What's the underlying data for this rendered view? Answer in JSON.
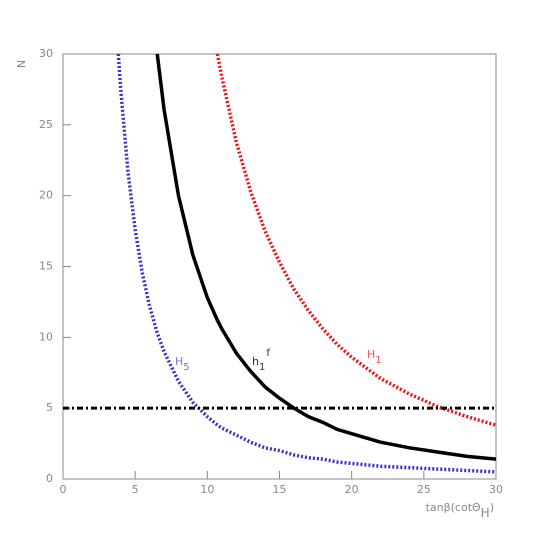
{
  "chart_data": {
    "type": "line",
    "xlabel": {
      "text": "tanβ(cotΘ",
      "sub": "H",
      "end": ")"
    },
    "ylabel": "N",
    "xlim": [
      0,
      30
    ],
    "ylim": [
      0,
      30
    ],
    "xticks": [
      0,
      5,
      10,
      15,
      20,
      25,
      30
    ],
    "yticks": [
      0,
      5,
      10,
      15,
      20,
      25,
      30
    ],
    "x": [
      3.83,
      4,
      4.5,
      5,
      5.5,
      6,
      6.53,
      7,
      8,
      9,
      10,
      10.7,
      11,
      12,
      13,
      14,
      15,
      16,
      17,
      18,
      19,
      20,
      22,
      24,
      26,
      28,
      30
    ],
    "series": [
      {
        "name": "H",
        "sub": "5",
        "color": "#3333cc",
        "style": "dotted",
        "values": [
          30.0,
          27.5,
          21.7,
          17.6,
          14.5,
          12.2,
          10.3,
          9.0,
          6.9,
          5.4,
          4.4,
          3.8,
          3.6,
          3.1,
          2.6,
          2.2,
          2.0,
          1.7,
          1.5,
          1.4,
          1.2,
          1.1,
          0.9,
          0.8,
          0.7,
          0.6,
          0.5
        ]
      },
      {
        "name": "h",
        "sub": "1",
        "sup": "f",
        "color": "#000000",
        "style": "solid",
        "values": [
          null,
          null,
          null,
          null,
          null,
          null,
          30.0,
          26.1,
          20.0,
          15.8,
          12.8,
          11.2,
          10.6,
          8.9,
          7.6,
          6.5,
          5.7,
          5.0,
          4.4,
          4.0,
          3.5,
          3.2,
          2.6,
          2.2,
          1.9,
          1.6,
          1.4
        ]
      },
      {
        "name": "H",
        "sub": "1",
        "color": "#ee1111",
        "style": "dotted",
        "values": [
          null,
          null,
          null,
          null,
          null,
          null,
          null,
          null,
          null,
          null,
          null,
          30.0,
          28.4,
          23.8,
          20.3,
          17.5,
          15.3,
          13.4,
          11.9,
          10.6,
          9.5,
          8.6,
          7.1,
          6.0,
          5.1,
          4.4,
          3.8
        ]
      }
    ],
    "reference_line": {
      "y": 5,
      "color": "#000000",
      "style": "dashdot"
    }
  }
}
